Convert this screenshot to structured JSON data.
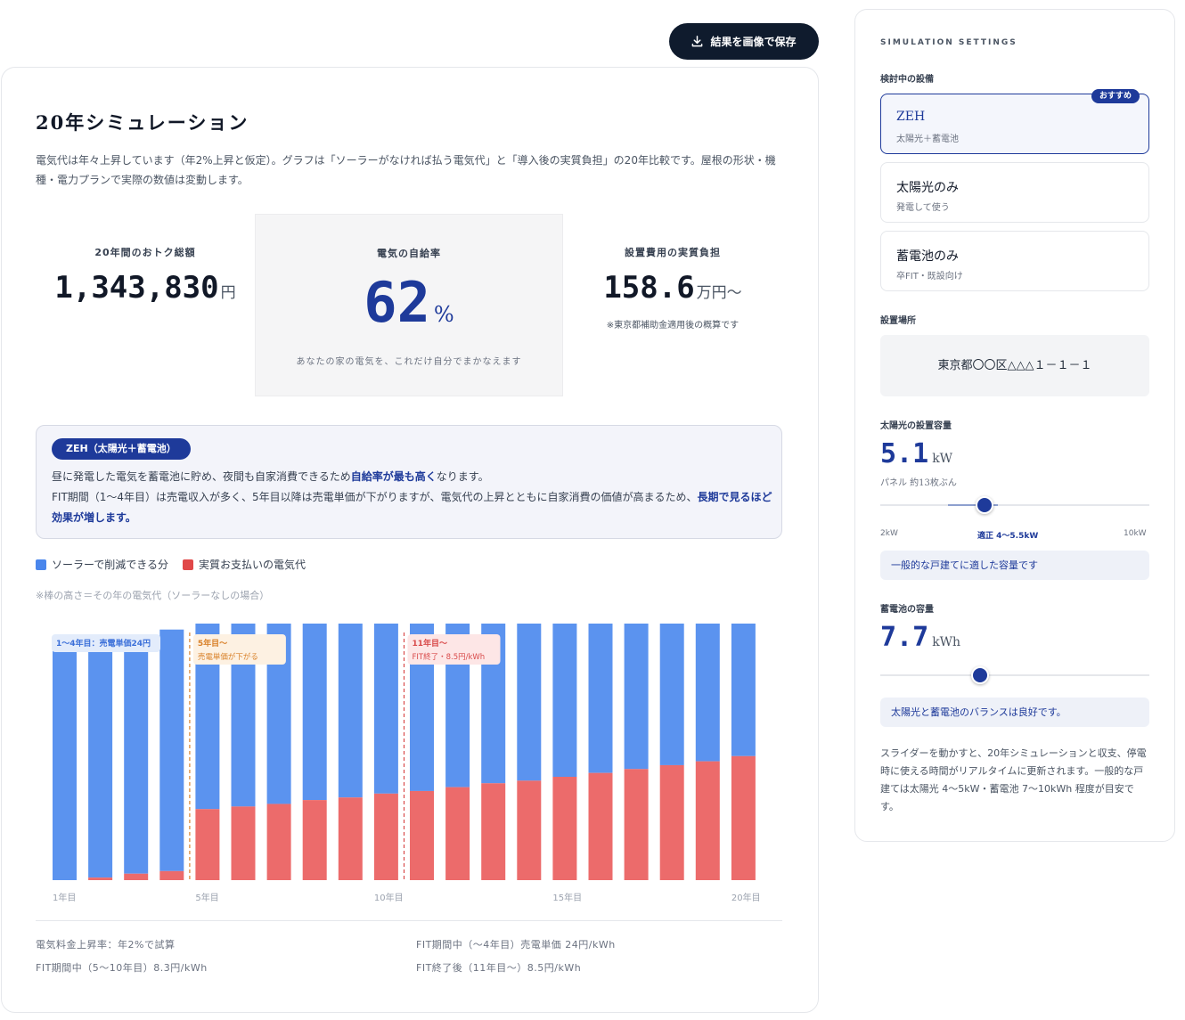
{
  "header": {
    "save_button": "結果を画像で保存"
  },
  "main": {
    "title": "20年シミュレーション",
    "description": "電気代は年々上昇しています（年2%上昇と仮定）。グラフは「ソーラーがなければ払う電気代」と「導入後の実質負担」の20年比較です。屋根の形状・機種・電力プランで実際の数値は変動します。",
    "stats": {
      "savings": {
        "label": "20年間のおトク総額",
        "value": "1,343,830",
        "unit": "円"
      },
      "self_sufficiency": {
        "label": "電気の自給率",
        "value": "62",
        "unit": "%",
        "note": "あなたの家の電気を、これだけ自分でまかなえます"
      },
      "cost": {
        "label": "設置費用の実質負担",
        "value": "158.6",
        "unit": "万円〜",
        "note": "※東京都補助金適用後の概算です"
      }
    },
    "zeh_box": {
      "badge": "ZEH（太陽光＋蓄電池）",
      "line1_pre": "昼に発電した電気を蓄電池に貯め、夜間も自家消費できるため",
      "line1_bold": "自給率が最も高く",
      "line1_post": "なります。",
      "line2_pre": "FIT期間（1〜4年目）は売電収入が多く、5年目以降は売電単価が下がりますが、電気代の上昇とともに自家消費の価値が高まるため、",
      "line2_bold": "長期で見るほど効果が増します。"
    },
    "legend": {
      "blue": "ソーラーで削減できる分",
      "red": "実質お支払いの電気代"
    },
    "chart_note": "※棒の高さ＝その年の電気代（ソーラーなしの場合）",
    "footnotes": {
      "rate": "電気料金上昇率：年2%で試算",
      "fit_early": "FIT期間中（〜4年目）売電単価 24円/kWh",
      "fit_mid": "FIT期間中（5〜10年目）8.3円/kWh",
      "fit_end": "FIT終了後（11年目〜）8.5円/kWh"
    }
  },
  "chart_data": {
    "type": "bar",
    "stacked": true,
    "categories": [
      "1年目",
      "2年目",
      "3年目",
      "4年目",
      "5年目",
      "6年目",
      "7年目",
      "8年目",
      "9年目",
      "10年目",
      "11年目",
      "12年目",
      "13年目",
      "14年目",
      "15年目",
      "16年目",
      "17年目",
      "18年目",
      "19年目",
      "20年目"
    ],
    "x_tick_labels": [
      "1年目",
      "5年目",
      "10年目",
      "15年目",
      "20年目"
    ],
    "series": [
      {
        "name": "実質お支払いの電気代",
        "color": "#ec6b6b",
        "values": [
          0,
          2,
          5,
          7,
          55,
          57,
          59,
          62,
          64,
          67,
          69,
          72,
          75,
          77,
          80,
          83,
          86,
          89,
          92,
          96
        ]
      },
      {
        "name": "ソーラーで削減できる分",
        "color": "#5b93ef",
        "values": [
          183,
          184,
          185,
          187,
          145,
          148,
          150,
          152,
          155,
          157,
          159,
          162,
          164,
          167,
          170,
          172,
          175,
          178,
          180,
          182
        ]
      }
    ],
    "annotations": [
      {
        "after_year": 0,
        "title": "1〜4年目：売電単価24円",
        "sub": "",
        "color": "#3b6fd9",
        "bg": "#e3ecfb"
      },
      {
        "after_year": 4,
        "title": "5年目〜",
        "sub": "売電単価が下がる",
        "color": "#d9822b",
        "bg": "#fdf1e2"
      },
      {
        "after_year": 10,
        "title": "11年目〜",
        "sub": "FIT終了・8.5円/kWh",
        "color": "#d94b4b",
        "bg": "#fde6e6"
      }
    ],
    "grid": false,
    "legend": "top-left"
  },
  "sidebar": {
    "heading": "SIMULATION SETTINGS",
    "equipment_label": "検討中の設備",
    "options": [
      {
        "title": "ZEH",
        "sub": "太陽光＋蓄電池",
        "badge": "おすすめ",
        "selected": true
      },
      {
        "title": "太陽光のみ",
        "sub": "発電して使う",
        "selected": false
      },
      {
        "title": "蓄電池のみ",
        "sub": "卒FIT・既設向け",
        "selected": false
      }
    ],
    "location_label": "設置場所",
    "location_value": "東京都〇〇区△△△１－１－１",
    "solar": {
      "label": "太陽光の設置容量",
      "value": "5.1",
      "unit": "kW",
      "note": "パネル 約13枚ぶん",
      "slider_value": 5.1,
      "slider_min": 2,
      "slider_max": 10,
      "range_min": 4,
      "range_max": 5.5,
      "tick_min": "2kW",
      "tick_mid": "適正 4〜5.5kW",
      "tick_max": "10kW",
      "info": "一般的な戸建てに適した容量です"
    },
    "battery": {
      "label": "蓄電池の容量",
      "value": "7.7",
      "unit": "kWh",
      "slider_value": 7.7,
      "info": "太陽光と蓄電池のバランスは良好です。"
    },
    "footer": "スライダーを動かすと、20年シミュレーションと収支、停電時に使える時間がリアルタイムに更新されます。一般的な戸建ては太陽光 4〜5kW・蓄電池 7〜10kWh 程度が目安です。"
  }
}
